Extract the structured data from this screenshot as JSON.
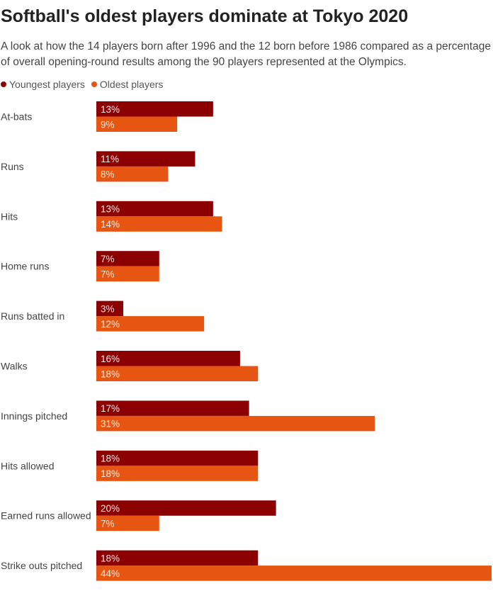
{
  "title": "Softball's oldest players dominate at Tokyo 2020",
  "subtitle": "A look at how the 14 players born after 1996 and the 12 born before 1986 compared as a percentage of overall opening-round results among the 90 players represented at the Olympics.",
  "legend": [
    {
      "label": "Youngest players",
      "color": "#8b0000"
    },
    {
      "label": "Oldest players",
      "color": "#e65512"
    }
  ],
  "chart_data": {
    "type": "bar",
    "orientation": "horizontal",
    "categories": [
      "At-bats",
      "Runs",
      "Hits",
      "Home runs",
      "Runs batted in",
      "Walks",
      "Innings pitched",
      "Hits allowed",
      "Earned runs allowed",
      "Strike outs pitched"
    ],
    "series": [
      {
        "name": "Youngest players",
        "color": "#8b0000",
        "values": [
          13,
          11,
          13,
          7,
          3,
          16,
          17,
          18,
          20,
          18
        ]
      },
      {
        "name": "Oldest players",
        "color": "#e65512",
        "values": [
          9,
          8,
          14,
          7,
          12,
          18,
          31,
          18,
          7,
          44
        ]
      }
    ],
    "value_suffix": "%",
    "xlim": [
      0,
      44
    ],
    "legend_position": "top-left",
    "grid": false,
    "data_labels": "inside-start"
  }
}
